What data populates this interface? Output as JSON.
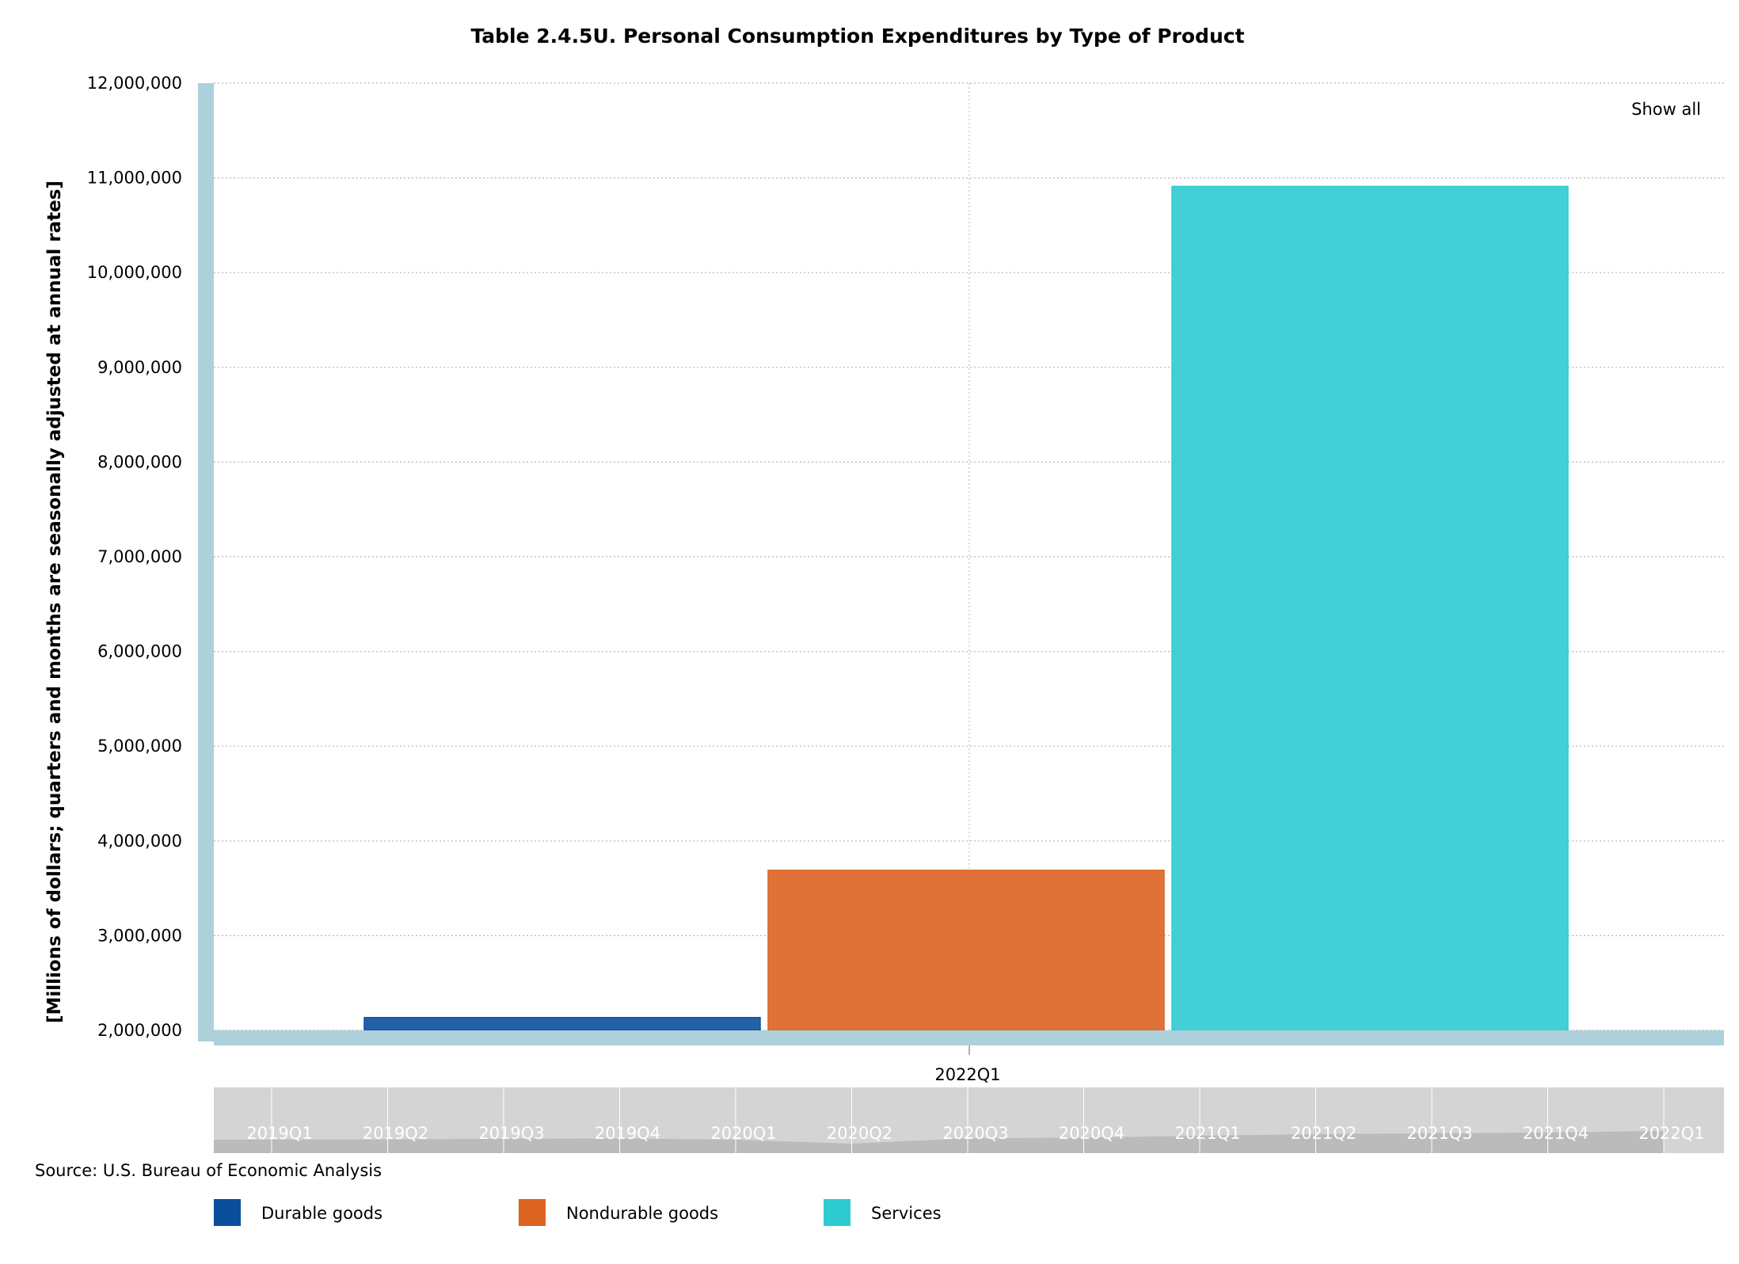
{
  "chart_data": {
    "type": "bar",
    "title": "Table 2.4.5U. Personal Consumption Expenditures by Type of Product",
    "ylabel": "[Millions of dollars; quarters and months are seasonally adjusted at annual rates]",
    "xlabel": "",
    "categories": [
      "2022Q1"
    ],
    "series": [
      {
        "name": "Durable goods",
        "color": "#0b4f9c",
        "values": [
          2135000
        ]
      },
      {
        "name": "Nondurable goods",
        "color": "#dc6421",
        "values": [
          3690000
        ]
      },
      {
        "name": "Services",
        "color": "#2ecbd1",
        "values": [
          10910000
        ]
      }
    ],
    "ylim": [
      2000000,
      12000000
    ],
    "yticks": [
      2000000,
      3000000,
      4000000,
      5000000,
      6000000,
      7000000,
      8000000,
      9000000,
      10000000,
      11000000,
      12000000
    ],
    "ytick_labels": [
      "2,000,000",
      "3,000,000",
      "4,000,000",
      "5,000,000",
      "6,000,000",
      "7,000,000",
      "8,000,000",
      "9,000,000",
      "10,000,000",
      "11,000,000",
      "12,000,000"
    ],
    "grid": true,
    "legend_position": "bottom-left",
    "navigator": {
      "labels": [
        "2019Q1",
        "2019Q2",
        "2019Q3",
        "2019Q4",
        "2020Q1",
        "2020Q2",
        "2020Q3",
        "2020Q4",
        "2021Q1",
        "2021Q2",
        "2021Q3",
        "2021Q4",
        "2022Q1"
      ],
      "totals": [
        14100000,
        14200000,
        14400000,
        14500000,
        14100000,
        12900000,
        14500000,
        14700000,
        15300000,
        15800000,
        16000000,
        16300000,
        16750000
      ],
      "range": [
        10000000,
        30000000
      ]
    }
  },
  "controls": {
    "show_all": "Show all"
  },
  "source": "Source: U.S. Bureau of Economic Analysis",
  "colors": {
    "axis_band": "#aed0db",
    "navigator_bg": "#d4d4d4",
    "navigator_area": "#bbbbbb",
    "grid": "#b4b4b4"
  }
}
